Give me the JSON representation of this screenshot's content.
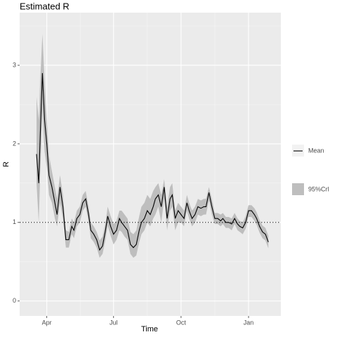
{
  "chart_data": {
    "type": "line",
    "title": "Estimated R",
    "x_label": "Time",
    "y_label": "R",
    "xlim": [
      -37,
      319
    ],
    "ylim": [
      -0.19,
      3.67
    ],
    "xticks": [
      {
        "value": 0,
        "label": "Apr"
      },
      {
        "value": 91,
        "label": "Jul"
      },
      {
        "value": 183,
        "label": "Oct"
      },
      {
        "value": 275,
        "label": "Jan"
      }
    ],
    "yticks": [
      0,
      1,
      2,
      3
    ],
    "grid": true,
    "hline": 1,
    "legend": "right",
    "x": [
      -14,
      -11,
      -9,
      -6,
      -3,
      0,
      3,
      7,
      11,
      14,
      18,
      22,
      26,
      30,
      34,
      37,
      41,
      45,
      49,
      53,
      57,
      60,
      64,
      68,
      72,
      76,
      80,
      83,
      87,
      91,
      95,
      99,
      102,
      106,
      110,
      114,
      118,
      122,
      126,
      129,
      133,
      137,
      141,
      145,
      148,
      152,
      156,
      160,
      164,
      168,
      171,
      175,
      179,
      183,
      187,
      191,
      194,
      198,
      202,
      206,
      210,
      214,
      217,
      221,
      225,
      229,
      233,
      237,
      240,
      244,
      248,
      252,
      256,
      260,
      263,
      267,
      271,
      275,
      279,
      283,
      286,
      290,
      294,
      298,
      302
    ],
    "series": [
      {
        "name": "Mean",
        "color": "#000000",
        "values": [
          1.87,
          1.5,
          2.1,
          2.9,
          2.3,
          2.0,
          1.6,
          1.45,
          1.25,
          1.1,
          1.45,
          1.2,
          0.78,
          0.78,
          0.95,
          0.9,
          1.05,
          1.1,
          1.25,
          1.3,
          1.1,
          0.9,
          0.85,
          0.78,
          0.65,
          0.7,
          0.9,
          1.08,
          0.95,
          0.85,
          0.9,
          1.05,
          1.0,
          0.95,
          0.9,
          0.72,
          0.68,
          0.72,
          0.9,
          1.0,
          1.05,
          1.15,
          1.1,
          1.2,
          1.3,
          1.35,
          1.2,
          1.45,
          1.05,
          1.3,
          1.35,
          1.05,
          1.15,
          1.1,
          1.05,
          1.25,
          1.15,
          1.05,
          1.1,
          1.2,
          1.18,
          1.2,
          1.2,
          1.38,
          1.2,
          1.05,
          1.05,
          1.02,
          1.05,
          1.0,
          1.0,
          0.98,
          1.05,
          0.98,
          0.95,
          0.93,
          1.0,
          1.15,
          1.15,
          1.1,
          1.05,
          0.95,
          0.88,
          0.85,
          0.75
        ]
      }
    ],
    "band": {
      "name": "95%CrI",
      "color": "#bebebe",
      "lower": [
        1.5,
        1.0,
        1.6,
        2.4,
        1.9,
        1.7,
        1.35,
        1.25,
        1.05,
        0.95,
        1.25,
        1.05,
        0.68,
        0.68,
        0.85,
        0.8,
        0.95,
        1.0,
        1.15,
        1.2,
        1.0,
        0.8,
        0.75,
        0.68,
        0.55,
        0.6,
        0.78,
        0.96,
        0.83,
        0.72,
        0.78,
        0.9,
        0.88,
        0.82,
        0.78,
        0.6,
        0.55,
        0.58,
        0.75,
        0.85,
        0.9,
        1.0,
        0.95,
        1.05,
        1.1,
        1.2,
        1.0,
        1.3,
        0.9,
        1.15,
        1.2,
        0.9,
        1.0,
        1.0,
        0.95,
        1.15,
        1.05,
        0.95,
        1.0,
        1.1,
        1.08,
        1.1,
        1.1,
        1.28,
        1.1,
        0.98,
        0.98,
        0.95,
        0.98,
        0.93,
        0.93,
        0.9,
        0.98,
        0.9,
        0.88,
        0.85,
        0.92,
        1.07,
        1.07,
        1.02,
        0.97,
        0.87,
        0.8,
        0.77,
        0.67
      ],
      "upper": [
        2.6,
        2.3,
        2.8,
        3.4,
        2.8,
        2.3,
        1.85,
        1.65,
        1.45,
        1.3,
        1.6,
        1.35,
        0.9,
        0.88,
        1.05,
        1.0,
        1.15,
        1.2,
        1.35,
        1.4,
        1.2,
        1.0,
        0.95,
        0.88,
        0.77,
        0.82,
        1.0,
        1.2,
        1.08,
        0.98,
        1.02,
        1.15,
        1.15,
        1.1,
        1.05,
        0.88,
        0.85,
        0.9,
        1.08,
        1.2,
        1.25,
        1.35,
        1.3,
        1.4,
        1.45,
        1.5,
        1.35,
        1.55,
        1.2,
        1.45,
        1.5,
        1.15,
        1.25,
        1.2,
        1.15,
        1.35,
        1.25,
        1.15,
        1.2,
        1.3,
        1.28,
        1.3,
        1.3,
        1.45,
        1.3,
        1.12,
        1.12,
        1.1,
        1.12,
        1.07,
        1.07,
        1.05,
        1.12,
        1.05,
        1.02,
        1.0,
        1.08,
        1.22,
        1.22,
        1.18,
        1.13,
        1.03,
        0.96,
        0.93,
        0.83
      ]
    }
  }
}
